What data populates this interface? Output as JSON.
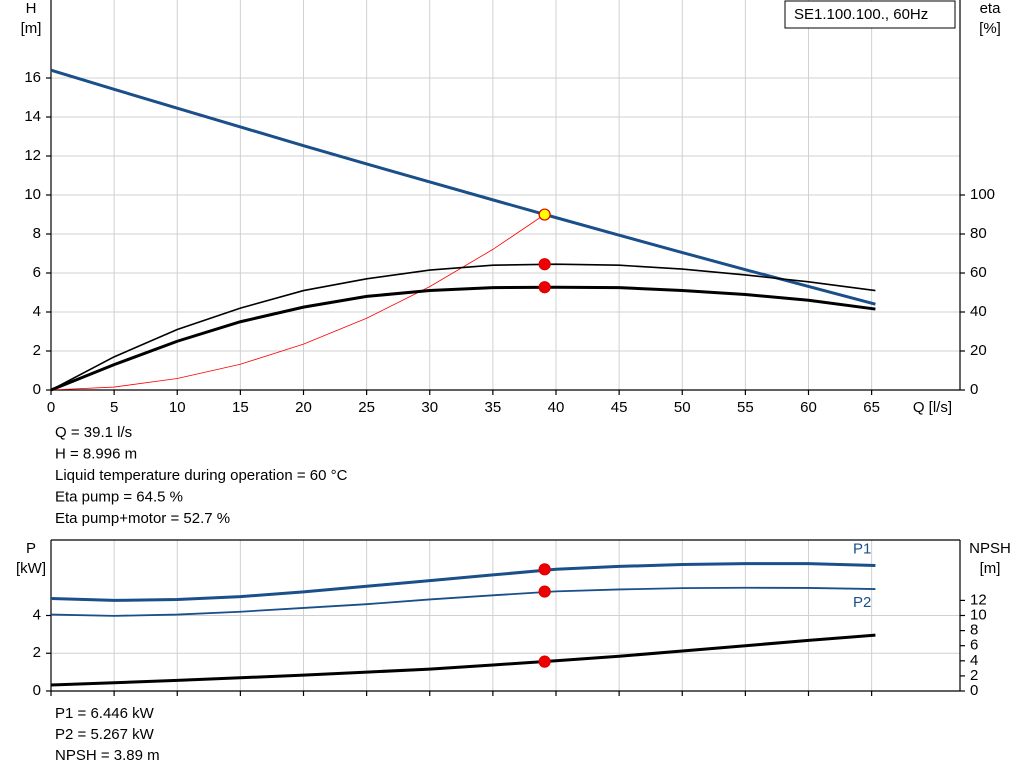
{
  "chart_data": [
    {
      "type": "line",
      "legend_label": "SE1.100.100., 60Hz",
      "y_label": "H",
      "y_unit": "[m]",
      "y2_label": "eta",
      "y2_unit": "[%]",
      "x_label": "Q [l/s]",
      "xlim": [
        0,
        72
      ],
      "xticks": [
        0,
        5,
        10,
        15,
        20,
        25,
        30,
        35,
        40,
        45,
        50,
        55,
        60,
        65
      ],
      "ylim": [
        0,
        20
      ],
      "yticks": [
        0,
        2,
        4,
        6,
        8,
        10,
        12,
        14,
        16
      ],
      "y2lim": [
        0,
        200
      ],
      "y2ticks": [
        0,
        20,
        40,
        60,
        80,
        100
      ],
      "grid": true,
      "series": [
        {
          "color": "#ff0000",
          "width": 0.8,
          "x": [
            0,
            5,
            10,
            15,
            20,
            25,
            30,
            35,
            39.1
          ],
          "values": [
            0,
            0.15,
            0.59,
            1.32,
            2.35,
            3.68,
            5.3,
            7.21,
            9.0
          ]
        },
        {
          "color": "#1a4f8a",
          "width": 3,
          "x": [
            0,
            5,
            10,
            15,
            20,
            25,
            30,
            35,
            40,
            45,
            50,
            55,
            60,
            65.3
          ],
          "values": [
            16.4,
            15.42,
            14.45,
            13.49,
            12.53,
            11.59,
            10.67,
            9.75,
            8.84,
            7.94,
            7.05,
            6.17,
            5.31,
            4.4
          ]
        },
        {
          "color": "#000000",
          "width": 1.6,
          "axis": "y2",
          "x": [
            0,
            5,
            10,
            15,
            20,
            25,
            30,
            35,
            40,
            45,
            50,
            55,
            60,
            65.3
          ],
          "values": [
            0,
            17,
            31,
            42,
            51,
            57,
            61.5,
            64,
            64.5,
            64,
            62,
            59,
            55.5,
            51
          ]
        },
        {
          "color": "#000000",
          "width": 3,
          "axis": "y2",
          "x": [
            0,
            5,
            10,
            15,
            20,
            25,
            30,
            35,
            40,
            45,
            50,
            55,
            60,
            65.3
          ],
          "values": [
            0,
            13,
            25,
            35,
            42.5,
            48,
            51,
            52.5,
            52.7,
            52.5,
            51,
            49,
            46,
            41.5
          ]
        }
      ],
      "markers": [
        {
          "x": 39.1,
          "y": 8.996,
          "color": "#ffff00"
        },
        {
          "x": 39.1,
          "y": 64.5,
          "axis": "y2",
          "color": "#ee0000"
        },
        {
          "x": 39.1,
          "y": 52.7,
          "axis": "y2",
          "color": "#ee0000"
        }
      ],
      "notes": [
        "Q = 39.1 l/s",
        "H = 8.996 m",
        "Liquid temperature during operation = 60 °C",
        "Eta pump = 64.5 %",
        "Eta pump+motor = 52.7 %"
      ]
    },
    {
      "type": "line",
      "y_label": "P",
      "y_unit": "[kW]",
      "y2_label": "NPSH",
      "y2_unit": "[m]",
      "xlim": [
        0,
        72
      ],
      "ylim": [
        0,
        8
      ],
      "yticks": [
        0,
        2,
        4
      ],
      "y2lim": [
        0,
        20
      ],
      "y2ticks": [
        0,
        2,
        4,
        6,
        8,
        10,
        12
      ],
      "grid": true,
      "series": [
        {
          "name": "P1",
          "color": "#1a4f8a",
          "width": 3,
          "x": [
            0,
            5,
            10,
            15,
            20,
            25,
            30,
            35,
            40,
            45,
            50,
            55,
            60,
            65.3
          ],
          "values": [
            4.9,
            4.8,
            4.85,
            5.0,
            5.25,
            5.55,
            5.85,
            6.15,
            6.45,
            6.6,
            6.7,
            6.75,
            6.75,
            6.65
          ]
        },
        {
          "name": "P2",
          "color": "#1a4f8a",
          "width": 1.8,
          "x": [
            0,
            5,
            10,
            15,
            20,
            25,
            30,
            35,
            40,
            45,
            50,
            55,
            60,
            65.3
          ],
          "values": [
            4.05,
            3.98,
            4.05,
            4.2,
            4.4,
            4.6,
            4.85,
            5.07,
            5.28,
            5.38,
            5.45,
            5.47,
            5.46,
            5.4
          ]
        },
        {
          "color": "#000000",
          "width": 3,
          "axis": "y2",
          "x": [
            0,
            5,
            10,
            15,
            20,
            25,
            30,
            35,
            40,
            45,
            50,
            55,
            60,
            65.3
          ],
          "values": [
            0.8,
            1.1,
            1.4,
            1.75,
            2.1,
            2.5,
            2.9,
            3.45,
            4.0,
            4.6,
            5.3,
            6.0,
            6.7,
            7.4
          ]
        }
      ],
      "markers": [
        {
          "x": 39.1,
          "y": 6.446,
          "color": "#ee0000"
        },
        {
          "x": 39.1,
          "y": 5.267,
          "color": "#ee0000"
        },
        {
          "x": 39.1,
          "y": 3.89,
          "axis": "y2",
          "color": "#ee0000"
        }
      ],
      "notes": [
        "P1 = 6.446 kW",
        "P2 = 5.267 kW",
        "NPSH = 3.89 m"
      ]
    }
  ]
}
